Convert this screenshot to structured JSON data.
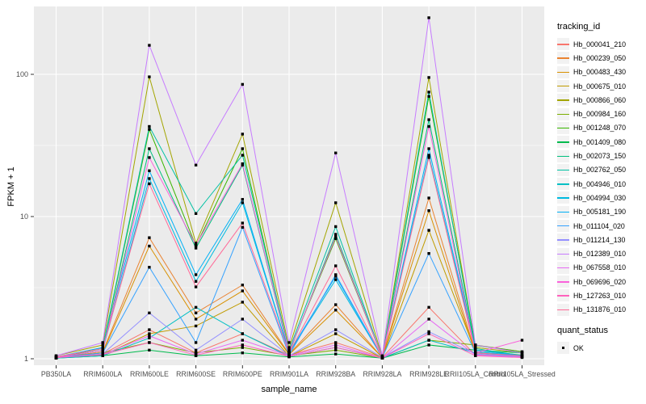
{
  "chart_data": {
    "type": "line",
    "title": "",
    "xlabel": "sample_name",
    "ylabel": "FPKM + 1",
    "y_scale": "log10",
    "y_ticks": [
      1,
      10,
      100
    ],
    "y_minor_ticks": [
      3.162,
      31.62
    ],
    "grid": "on",
    "legend_position": "right",
    "point_shape": "filled-square",
    "categories": [
      "PB350LA",
      "RRIM600LA",
      "RRIM600LE",
      "RRIM600SE",
      "RRIM600PE",
      "RRIM901LA",
      "RRIM928BA",
      "RRIM928LA",
      "RRIM928LE",
      "RRII105LA_Control",
      "RRII105LA_Stressed"
    ],
    "series": [
      {
        "name": "Hb_000041_210",
        "color": "#F8766D",
        "values": [
          1.02,
          1.08,
          1.6,
          1.1,
          1.5,
          1.06,
          1.3,
          1.02,
          2.3,
          1.06,
          1.03
        ]
      },
      {
        "name": "Hb_000239_050",
        "color": "#EA8331",
        "values": [
          1.02,
          1.12,
          7.1,
          2.1,
          3.3,
          1.08,
          2.4,
          1.02,
          13.5,
          1.1,
          1.04
        ]
      },
      {
        "name": "Hb_000483_430",
        "color": "#D89000",
        "values": [
          1.02,
          1.1,
          6.2,
          1.9,
          3.0,
          1.07,
          2.2,
          1.02,
          11,
          1.08,
          1.03
        ]
      },
      {
        "name": "Hb_000675_010",
        "color": "#C09B00",
        "values": [
          1.01,
          1.06,
          1.5,
          1.7,
          2.5,
          1.04,
          1.5,
          1.01,
          8,
          1.12,
          1.05
        ]
      },
      {
        "name": "Hb_000866_060",
        "color": "#A3A500",
        "values": [
          1.05,
          1.25,
          96,
          6.5,
          38,
          1.2,
          12.5,
          1.03,
          95,
          1.2,
          1.1
        ]
      },
      {
        "name": "Hb_000984_160",
        "color": "#7CAE00",
        "values": [
          1.02,
          1.1,
          1.3,
          1.1,
          1.2,
          1.05,
          1.15,
          1.01,
          1.35,
          1.25,
          1.12
        ]
      },
      {
        "name": "Hb_001248_070",
        "color": "#39B600",
        "values": [
          1.02,
          1.18,
          41,
          6.2,
          30,
          1.12,
          7,
          1.02,
          70,
          1.24,
          1.12
        ]
      },
      {
        "name": "Hb_001409_080",
        "color": "#00BB4E",
        "values": [
          1.01,
          1.05,
          1.15,
          1.05,
          1.1,
          1.03,
          1.08,
          1.01,
          1.25,
          1.15,
          1.1
        ]
      },
      {
        "name": "Hb_002073_150",
        "color": "#00BF7D",
        "values": [
          1.02,
          1.15,
          30,
          6.0,
          23,
          1.1,
          7.5,
          1.02,
          48,
          1.15,
          1.06
        ]
      },
      {
        "name": "Hb_002762_050",
        "color": "#00C1A3",
        "values": [
          1.02,
          1.2,
          43,
          10.5,
          27,
          1.15,
          8.5,
          1.02,
          75,
          1.18,
          1.05
        ]
      },
      {
        "name": "Hb_004946_010",
        "color": "#00BFC4",
        "values": [
          1.01,
          1.05,
          1.4,
          2.3,
          1.5,
          1.04,
          1.2,
          1.01,
          1.35,
          1.1,
          1.05
        ]
      },
      {
        "name": "Hb_004994_030",
        "color": "#00BAE0",
        "values": [
          1.02,
          1.15,
          18.5,
          3.5,
          12.5,
          1.1,
          3.6,
          1.02,
          27,
          1.12,
          1.05
        ]
      },
      {
        "name": "Hb_005181_190",
        "color": "#00B0F6",
        "values": [
          1.03,
          1.2,
          21,
          3.9,
          13.2,
          1.1,
          3.8,
          1.02,
          30,
          1.15,
          1.05
        ]
      },
      {
        "name": "Hb_011104_020",
        "color": "#35A2FF",
        "values": [
          1.02,
          1.1,
          4.4,
          1.3,
          8.4,
          1.06,
          3.9,
          1.02,
          5.5,
          1.1,
          1.04
        ]
      },
      {
        "name": "Hb_011214_130",
        "color": "#9590FF",
        "values": [
          1.02,
          1.08,
          2.1,
          1.15,
          1.9,
          1.05,
          1.6,
          1.02,
          1.55,
          1.08,
          1.03
        ]
      },
      {
        "name": "Hb_012389_010",
        "color": "#C77CFF",
        "values": [
          1.05,
          1.3,
          160,
          23,
          85,
          1.3,
          28,
          1.05,
          250,
          1.25,
          1.1
        ]
      },
      {
        "name": "Hb_067558_010",
        "color": "#E76BF3",
        "values": [
          1.02,
          1.07,
          1.45,
          1.08,
          1.35,
          1.05,
          1.25,
          1.01,
          1.9,
          1.06,
          1.03
        ]
      },
      {
        "name": "Hb_069696_020",
        "color": "#FA62DB",
        "values": [
          1.02,
          1.15,
          26,
          6.3,
          23.5,
          1.12,
          7.2,
          1.02,
          43,
          1.1,
          1.35
        ]
      },
      {
        "name": "Hb_127263_010",
        "color": "#FF62BC",
        "values": [
          1.02,
          1.07,
          1.3,
          1.06,
          1.25,
          1.04,
          1.2,
          1.01,
          1.5,
          1.05,
          1.02
        ]
      },
      {
        "name": "Hb_131876_010",
        "color": "#FF6A98",
        "values": [
          1.03,
          1.18,
          17,
          3.2,
          9,
          1.1,
          4.5,
          1.02,
          26,
          1.1,
          1.05
        ]
      }
    ],
    "legend": {
      "series_title": "tracking_id",
      "quant_title": "quant_status",
      "quant_items": [
        {
          "label": "OK"
        }
      ]
    }
  },
  "colors": {
    "panel_bg": "#EBEBEB",
    "grid": "#FFFFFF",
    "tick": "#333333",
    "tick_label": "#4D4D4D",
    "legend_key_bg": "#F2F2F2",
    "point": "#000000",
    "background": "#FFFFFF"
  }
}
